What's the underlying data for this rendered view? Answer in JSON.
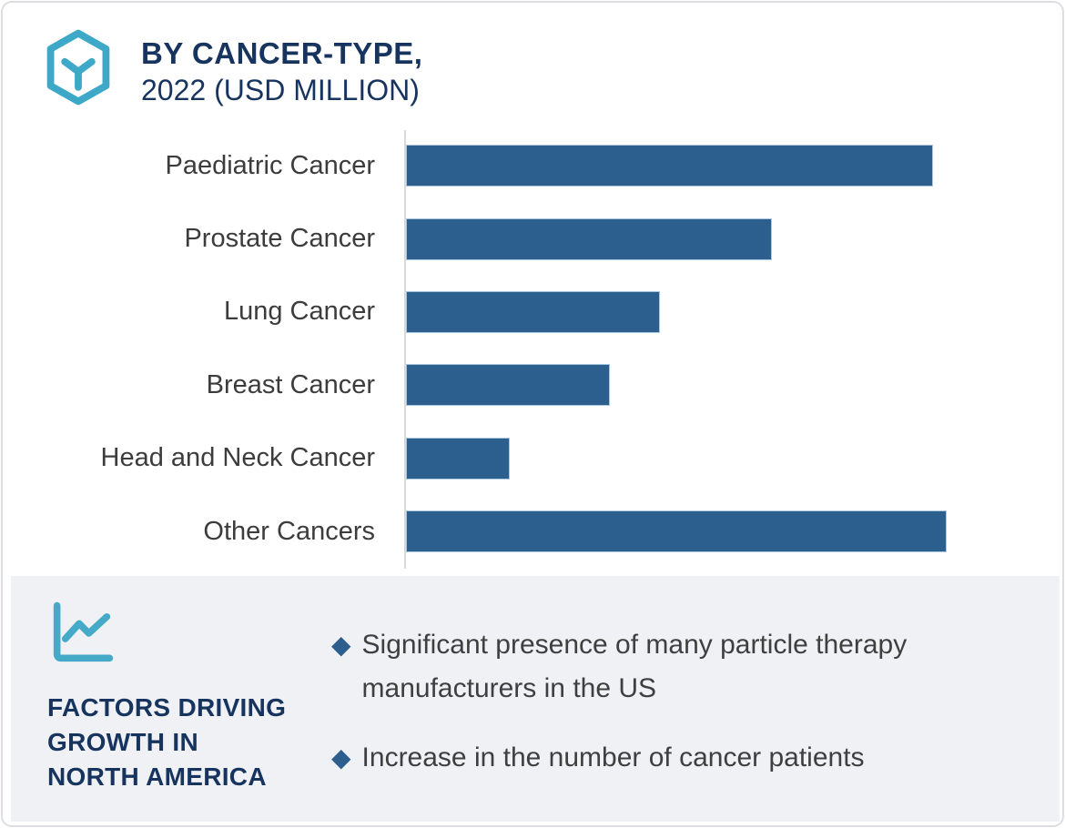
{
  "card": {
    "background": "#ffffff",
    "border_color": "#dcdee1"
  },
  "header": {
    "icon": "hex-cube-logo-icon",
    "icon_color": "#3da8c8",
    "title_line1": "BY CANCER-TYPE,",
    "title_line2": "2022 (USD MILLION)",
    "title_color": "#17345f"
  },
  "chart_data": {
    "type": "bar",
    "orientation": "horizontal",
    "title": "BY CANCER-TYPE, 2022 (USD MILLION)",
    "categories": [
      "Paediatric Cancer",
      "Prostate Cancer",
      "Lung Cancer",
      "Breast Cancer",
      "Head and Neck Cancer",
      "Other Cancers"
    ],
    "values": [
      97.5,
      67.7,
      47.0,
      37.7,
      19.2,
      100
    ],
    "value_unit": "percent of longest bar (numeric axis values not shown in image)",
    "xlim": [
      0,
      100
    ],
    "bar_color": "#2d5f8e",
    "bar_outline_color": "#a9c7e0",
    "axis_line_color": "#d9d9d9",
    "label_color": "#3c3c3c",
    "grid": false,
    "legend": false
  },
  "factors_panel": {
    "background": "#eff1f5",
    "icon": "line-chart-icon",
    "icon_color": "#45aac8",
    "heading_lines": [
      "FACTORS DRIVING",
      "GROWTH IN",
      "NORTH AMERICA"
    ],
    "heading_color": "#17345f",
    "bullet_glyph": "◆",
    "bullet_color": "#2d5f8e",
    "text_color": "#3f3f3f",
    "bullets": [
      "Significant presence of many particle therapy manufacturers  in the US",
      "Increase in the number of cancer patients"
    ]
  }
}
